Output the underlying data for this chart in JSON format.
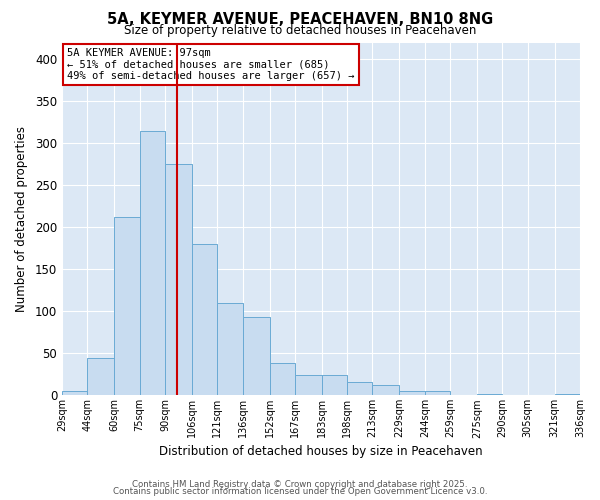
{
  "title": "5A, KEYMER AVENUE, PEACEHAVEN, BN10 8NG",
  "subtitle": "Size of property relative to detached houses in Peacehaven",
  "xlabel": "Distribution of detached houses by size in Peacehaven",
  "ylabel": "Number of detached properties",
  "bin_labels": [
    "29sqm",
    "44sqm",
    "60sqm",
    "75sqm",
    "90sqm",
    "106sqm",
    "121sqm",
    "136sqm",
    "152sqm",
    "167sqm",
    "183sqm",
    "198sqm",
    "213sqm",
    "229sqm",
    "244sqm",
    "259sqm",
    "275sqm",
    "290sqm",
    "305sqm",
    "321sqm",
    "336sqm"
  ],
  "bin_edges": [
    29,
    44,
    60,
    75,
    90,
    106,
    121,
    136,
    152,
    167,
    183,
    198,
    213,
    229,
    244,
    259,
    275,
    290,
    305,
    321,
    336
  ],
  "bar_heights": [
    5,
    44,
    212,
    315,
    275,
    180,
    110,
    93,
    38,
    24,
    24,
    16,
    12,
    5,
    5,
    0,
    2,
    0,
    0,
    2
  ],
  "bar_color": "#c8dcf0",
  "bar_edge_color": "#6aaad4",
  "bar_edge_width": 0.7,
  "vline_x": 97,
  "vline_color": "#cc0000",
  "annotation_line1": "5A KEYMER AVENUE: 97sqm",
  "annotation_line2": "← 51% of detached houses are smaller (685)",
  "annotation_line3": "49% of semi-detached houses are larger (657) →",
  "annotation_box_color": "#ffffff",
  "annotation_box_edge": "#cc0000",
  "ylim": [
    0,
    420
  ],
  "yticks": [
    0,
    50,
    100,
    150,
    200,
    250,
    300,
    350,
    400
  ],
  "bg_color": "#dce8f5",
  "grid_color": "#ffffff",
  "fig_bg_color": "#ffffff",
  "footer_line1": "Contains HM Land Registry data © Crown copyright and database right 2025.",
  "footer_line2": "Contains public sector information licensed under the Open Government Licence v3.0."
}
